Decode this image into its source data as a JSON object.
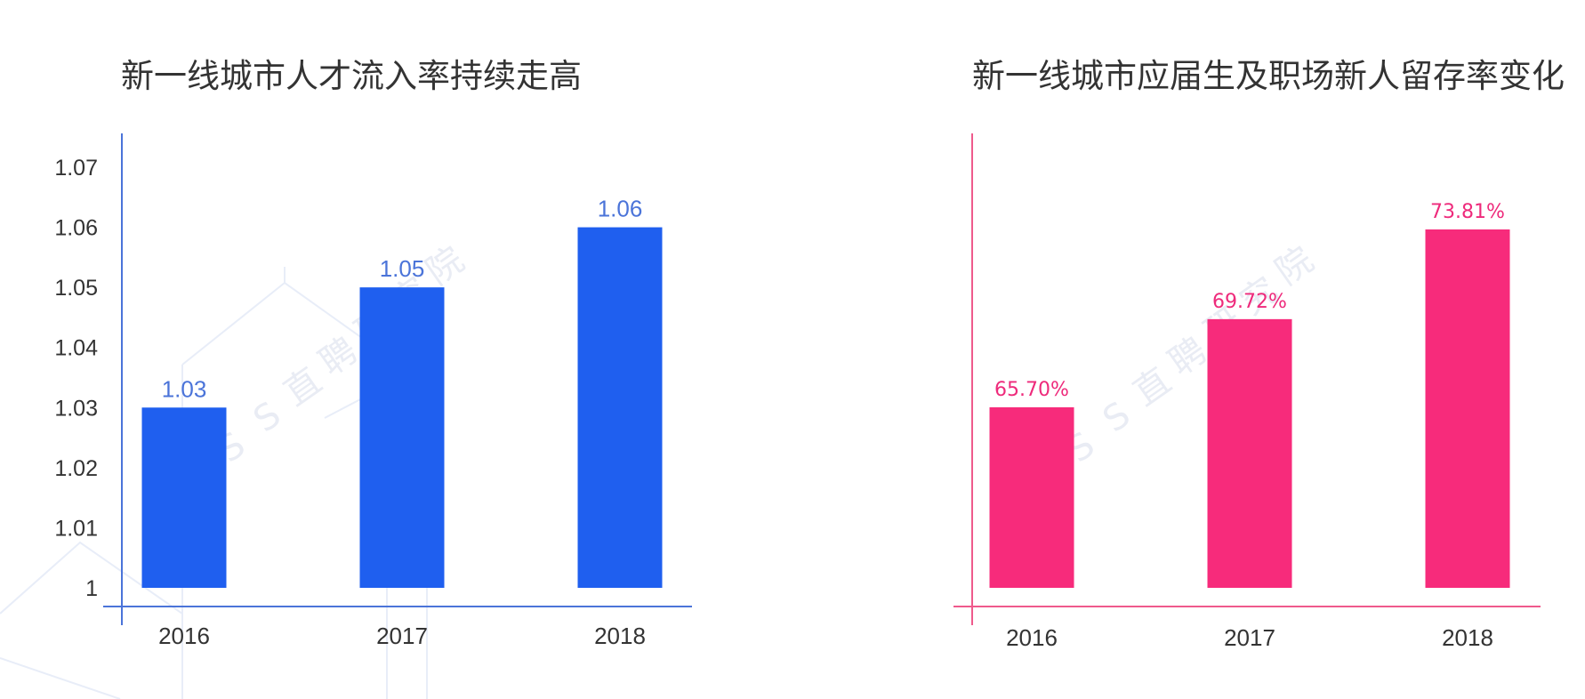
{
  "watermark": {
    "text": [
      "B",
      "O",
      "S",
      "S",
      "直",
      "聘",
      "研",
      "究",
      "院"
    ],
    "color": "#dfe4f0"
  },
  "chart_data": [
    {
      "type": "bar",
      "title": "新一线城市人才流入率持续走高",
      "categories": [
        "2016",
        "2017",
        "2018"
      ],
      "values": [
        1.03,
        1.05,
        1.06
      ],
      "value_labels": [
        "1.03",
        "1.05",
        "1.06"
      ],
      "y_ticks": [
        "1",
        "1.01",
        "1.02",
        "1.03",
        "1.04",
        "1.05",
        "1.06",
        "1.07"
      ],
      "ylim": [
        1.0,
        1.07
      ],
      "xlabel": "",
      "ylabel": "",
      "grid": false,
      "bar_color": "#1f5fef",
      "axis_color": "#4b74d9",
      "label_color": "#4b74d9"
    },
    {
      "type": "bar",
      "title": "新一线城市应届生及职场新人留存率变化",
      "categories": [
        "2016",
        "2017",
        "2018"
      ],
      "values": [
        65.7,
        69.72,
        73.81
      ],
      "value_labels": [
        "65.70%",
        "69.72%",
        "73.81%"
      ],
      "y_ticks": [],
      "xlabel": "",
      "ylabel": "",
      "grid": false,
      "bar_color": "#f72b7b",
      "axis_color": "#ef5a8c",
      "label_color": "#ee2a7b"
    }
  ]
}
